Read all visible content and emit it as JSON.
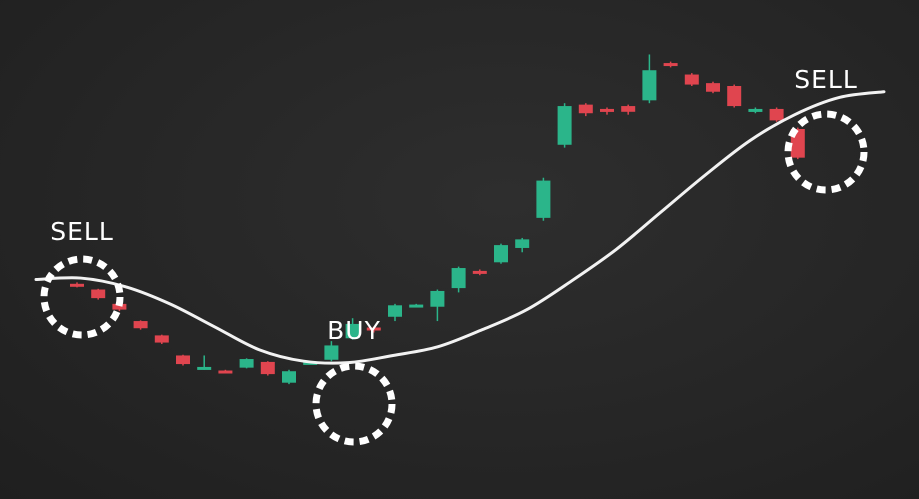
{
  "chart_data": {
    "type": "candlestick",
    "colors": {
      "bull": "#2bb58a",
      "bear": "#e0454f",
      "trend": "#f2f2f2",
      "background": "#262626",
      "marker": "#ffffff"
    },
    "candles": [
      {
        "open": 102.0,
        "close": 100.0,
        "high": 103.0,
        "low": 99.5
      },
      {
        "open": 98.0,
        "close": 92.0,
        "high": 98.5,
        "low": 91.0
      },
      {
        "open": 88.0,
        "close": 84.0,
        "high": 88.5,
        "low": 83.0
      },
      {
        "open": 76.0,
        "close": 71.0,
        "high": 76.5,
        "low": 70.0
      },
      {
        "open": 66.0,
        "close": 61.0,
        "high": 66.5,
        "low": 60.0
      },
      {
        "open": 52.0,
        "close": 46.0,
        "high": 52.5,
        "low": 45.0
      },
      {
        "open": 43.0,
        "close": 44.0,
        "high": 52.0,
        "low": 42.0
      },
      {
        "open": 41.5,
        "close": 40.5,
        "high": 42.0,
        "low": 40.0
      },
      {
        "open": 43.5,
        "close": 49.5,
        "high": 50.0,
        "low": 43.0
      },
      {
        "open": 47.5,
        "close": 39.0,
        "high": 48.0,
        "low": 38.0
      },
      {
        "open": 33.0,
        "close": 41.0,
        "high": 42.0,
        "low": 32.0
      },
      {
        "open": 46.5,
        "close": 47.5,
        "high": 48.0,
        "low": 46.0
      },
      {
        "open": 49.0,
        "close": 59.0,
        "high": 62.0,
        "low": 48.0
      },
      {
        "open": 64.0,
        "close": 74.0,
        "high": 78.0,
        "low": 63.0
      },
      {
        "open": 71.5,
        "close": 70.5,
        "high": 72.0,
        "low": 68.0
      },
      {
        "open": 79.0,
        "close": 87.0,
        "high": 88.0,
        "low": 76.0
      },
      {
        "open": 86.5,
        "close": 87.5,
        "high": 88.0,
        "low": 86.0
      },
      {
        "open": 86.0,
        "close": 97.0,
        "high": 98.0,
        "low": 76.0
      },
      {
        "open": 99.0,
        "close": 113.0,
        "high": 114.0,
        "low": 96.0
      },
      {
        "open": 111.0,
        "close": 109.0,
        "high": 112.0,
        "low": 108.0
      },
      {
        "open": 117.0,
        "close": 129.0,
        "high": 130.0,
        "low": 116.0
      },
      {
        "open": 127.0,
        "close": 133.0,
        "high": 134.0,
        "low": 124.0
      },
      {
        "open": 148.0,
        "close": 174.0,
        "high": 176.0,
        "low": 146.0
      },
      {
        "open": 199.0,
        "close": 226.0,
        "high": 228.0,
        "low": 197.0
      },
      {
        "open": 227.0,
        "close": 221.0,
        "high": 228.0,
        "low": 219.0
      },
      {
        "open": 224.0,
        "close": 222.0,
        "high": 225.0,
        "low": 220.0
      },
      {
        "open": 226.0,
        "close": 222.0,
        "high": 227.0,
        "low": 220.0
      },
      {
        "open": 230.0,
        "close": 251.0,
        "high": 262.0,
        "low": 228.0
      },
      {
        "open": 256.0,
        "close": 254.0,
        "high": 257.0,
        "low": 253.0
      },
      {
        "open": 248.0,
        "close": 241.0,
        "high": 249.0,
        "low": 240.0
      },
      {
        "open": 242.0,
        "close": 236.0,
        "high": 243.0,
        "low": 235.0
      },
      {
        "open": 240.0,
        "close": 226.0,
        "high": 241.0,
        "low": 225.0
      },
      {
        "open": 222.0,
        "close": 224.0,
        "high": 225.0,
        "low": 221.0
      },
      {
        "open": 224.0,
        "close": 216.0,
        "high": 225.0,
        "low": 215.0
      },
      {
        "open": 210.0,
        "close": 190.0,
        "high": 211.0,
        "low": 189.0
      }
    ],
    "trend_line": [
      105,
      106,
      100,
      88,
      72,
      56,
      48,
      47,
      52,
      58,
      70,
      84,
      104,
      126,
      152,
      178,
      202,
      220,
      232,
      236
    ],
    "signals": [
      {
        "label": "SELL",
        "candle_index": 0
      },
      {
        "label": "BUY",
        "candle_index": 13
      },
      {
        "label": "SELL",
        "candle_index": 31
      }
    ],
    "ylim": [
      0,
      300
    ]
  }
}
